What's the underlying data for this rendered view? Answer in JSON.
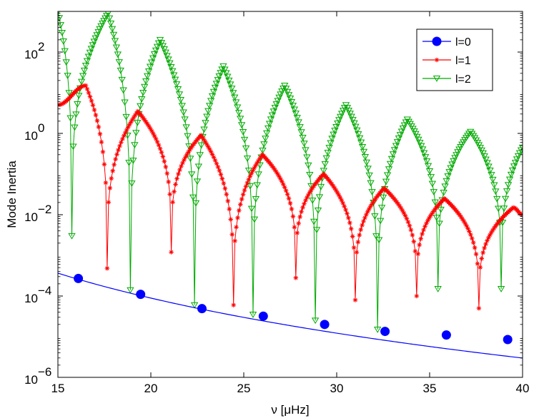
{
  "chart_data": {
    "type": "line",
    "xlabel": "ν  [μHz]",
    "ylabel": "Mode Inertia",
    "xlim": [
      15,
      40
    ],
    "ylim": [
      1e-06,
      1000
    ],
    "yscale": "log",
    "grid": false,
    "legend_position": "top-right",
    "x_ticks": [
      15,
      20,
      25,
      30,
      35,
      40
    ],
    "x_tick_labels": [
      "15",
      "20",
      "25",
      "30",
      "35",
      "40"
    ],
    "y_ticks": [
      1e-06,
      0.0001,
      0.01,
      1,
      100
    ],
    "y_tick_labels": [
      {
        "base": "10",
        "exp": "−6"
      },
      {
        "base": "10",
        "exp": "−4"
      },
      {
        "base": "10",
        "exp": "−2"
      },
      {
        "base": "10",
        "exp": "0"
      },
      {
        "base": "10",
        "exp": "2"
      }
    ],
    "colors": {
      "l0": "#0000ff",
      "l1": "#ff0000",
      "l2": "#00aa00"
    },
    "series": [
      {
        "name": "l=0",
        "color": "#0000ff",
        "marker": "circle",
        "line": {
          "A": 5e-05,
          "ref": 22.5,
          "exp": 4.9,
          "x_range": [
            15,
            40
          ]
        },
        "x": [
          16.1,
          19.45,
          22.75,
          26.05,
          29.35,
          32.6,
          35.9,
          39.2
        ],
        "y": [
          0.00027,
          0.00011,
          4.9e-05,
          3.2e-05,
          2e-05,
          1.35e-05,
          1.1e-05,
          8.5e-06
        ]
      },
      {
        "name": "l=1",
        "color": "#ff0000",
        "marker": "asterisk",
        "nodes": [
          {
            "x": 17.65,
            "y": 0.00048
          },
          {
            "x": 21.1,
            "y": 0.0012
          },
          {
            "x": 24.45,
            "y": 6e-05
          },
          {
            "x": 27.8,
            "y": 0.00028
          },
          {
            "x": 31.0,
            "y": 8e-05
          },
          {
            "x": 34.3,
            "y": 0.0001
          },
          {
            "x": 37.65,
            "y": 5e-05
          }
        ],
        "peaks": [
          {
            "x": 16.5,
            "y": 15
          },
          {
            "x": 19.3,
            "y": 3.5
          },
          {
            "x": 22.7,
            "y": 0.9
          },
          {
            "x": 26.0,
            "y": 0.3
          },
          {
            "x": 29.3,
            "y": 0.1
          },
          {
            "x": 32.55,
            "y": 0.045
          },
          {
            "x": 35.8,
            "y": 0.025
          },
          {
            "x": 39.5,
            "y": 0.015
          }
        ],
        "edges": [
          {
            "x": 15,
            "y": 5
          },
          {
            "x": 40,
            "y": 0.01
          }
        ]
      },
      {
        "name": "l=2",
        "color": "#00aa00",
        "marker": "triangle-down",
        "nodes": [
          {
            "x": 15.75,
            "y": 0.003
          },
          {
            "x": 18.9,
            "y": 0.00014
          },
          {
            "x": 22.35,
            "y": 6e-05
          },
          {
            "x": 25.5,
            "y": 3.5e-05
          },
          {
            "x": 28.85,
            "y": 2.5e-05
          },
          {
            "x": 32.2,
            "y": 1.5e-05
          },
          {
            "x": 35.45,
            "y": 0.00015
          },
          {
            "x": 38.85,
            "y": 0.00015
          }
        ],
        "peaks": [
          {
            "x": 17.7,
            "y": 900
          },
          {
            "x": 20.5,
            "y": 200
          },
          {
            "x": 23.9,
            "y": 45
          },
          {
            "x": 27.2,
            "y": 15
          },
          {
            "x": 30.5,
            "y": 5
          },
          {
            "x": 33.8,
            "y": 2.2
          },
          {
            "x": 37.2,
            "y": 1.1
          }
        ],
        "edges": [
          {
            "x": 15,
            "y": 1000
          },
          {
            "x": 40,
            "y": 0.45
          }
        ]
      }
    ]
  }
}
